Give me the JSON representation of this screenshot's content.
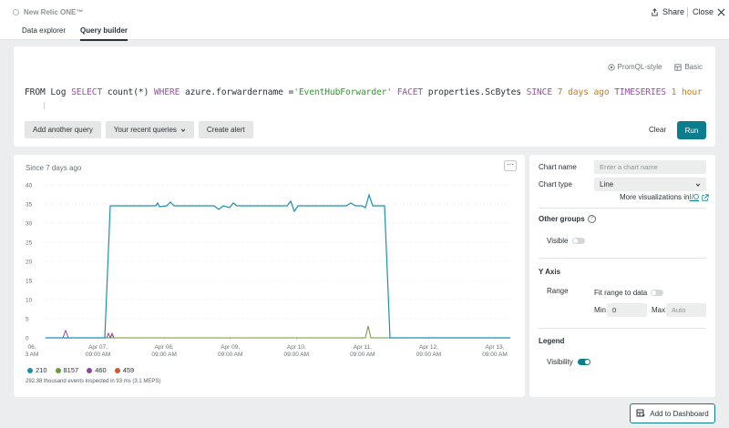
{
  "header": {
    "brand": "New Relic ONE™",
    "share_label": "Share",
    "close_label": "Close"
  },
  "tabs": [
    {
      "label": "Data explorer",
      "active": false
    },
    {
      "label": "Query builder",
      "active": true
    }
  ],
  "query": {
    "modes": {
      "promql": "PromQL-style",
      "basic": "Basic"
    },
    "nrql": {
      "t1": "FROM Log ",
      "k1": "SELECT",
      "t2": " count(*) ",
      "k2": "WHERE",
      "t3": " azure.forwardername =",
      "s1": "'EventHubForwarder'",
      "t4": " ",
      "k3": "FACET",
      "t5": " properties.ScBytes ",
      "k4": "SINCE",
      "t6": " ",
      "n1": "7",
      "t7": " ",
      "n2": "days ago",
      "t8": " ",
      "k5": "TIMESERIES",
      "t9": " ",
      "n3": "1 hour"
    },
    "add_query": "Add another query",
    "recent": "Your recent queries",
    "create_alert": "Create alert",
    "clear": "Clear",
    "run": "Run"
  },
  "chart": {
    "since": "Since 7 days ago",
    "more": "···",
    "footnote": "292.38 thousand events inspected in 93 ms (3.1 MEPS)"
  },
  "chart_data": {
    "type": "line",
    "ylim": [
      0,
      40
    ],
    "yticks": [
      "0",
      "5",
      "10",
      "15",
      "20",
      "25",
      "30",
      "35",
      "40"
    ],
    "xticks": [
      [
        "06,",
        "3 AM"
      ],
      [
        "Apr 07,",
        "09:00 AM"
      ],
      [
        "Apr 08,",
        "09:00 AM"
      ],
      [
        "Apr 09,",
        "09:00 AM"
      ],
      [
        "Apr 10,",
        "09:00 AM"
      ],
      [
        "Apr 11,",
        "09:00 AM"
      ],
      [
        "Apr 12,",
        "09:00 AM"
      ],
      [
        "Apr 13,",
        "09:00 AM"
      ]
    ],
    "series": [
      {
        "name": "210",
        "color": "#1d8fb0"
      },
      {
        "name": "8157",
        "color": "#6a9a3a"
      },
      {
        "name": "460",
        "color": "#8d47a0"
      },
      {
        "name": "459",
        "color": "#d2582d"
      }
    ]
  },
  "settings": {
    "chart_name_label": "Chart name",
    "chart_name_placeholder": "Enter a chart name",
    "chart_type_label": "Chart type",
    "chart_type_value": "Line",
    "more_viz_prefix": "More visualizations in ",
    "more_viz_link": "I/O",
    "other_groups": "Other groups",
    "visible_label": "Visible",
    "y_axis": "Y Axis",
    "range_label": "Range",
    "fit_range": "Fit range to data",
    "min_label": "Min",
    "min_value": "0",
    "max_label": "Max",
    "max_placeholder": "Auto",
    "legend": "Legend",
    "visibility_label": "Visibility"
  },
  "add_to_dashboard": "Add to Dashboard"
}
